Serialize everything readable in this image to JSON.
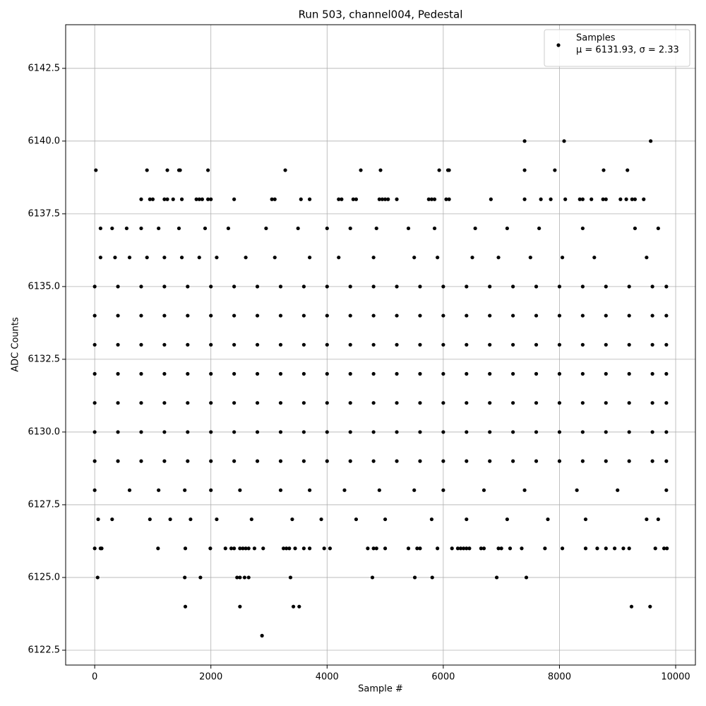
{
  "chart_data": {
    "type": "scatter",
    "title": "Run 503, channel004, Pedestal",
    "x_label": "Sample #",
    "y_label": "ADC Counts",
    "xlim": [
      -500,
      10340
    ],
    "ylim": [
      6121.99,
      6144.0
    ],
    "xticks": [
      0,
      2000,
      4000,
      6000,
      8000,
      10000
    ],
    "yticks": [
      6122.5,
      {
        "value": 6125,
        "label": "6125.0"
      },
      6127.5,
      {
        "value": 6130,
        "label": "6130.0"
      },
      6132.5,
      {
        "value": 6135,
        "label": "6135.0"
      },
      6137.5,
      {
        "value": 6140,
        "label": "6140.0"
      },
      6142.5
    ],
    "grid": true,
    "legend": "upper right",
    "annotation": "μ = 6131.93, σ = 2.33",
    "series": [
      {
        "name": "Samples",
        "color": "#000000",
        "x": [
          7400,
          8080,
          9570,
          20,
          900,
          1250,
          1450,
          1470,
          1950,
          3280,
          4580,
          4920,
          5930,
          6080,
          6100,
          7400,
          7920,
          8760,
          9170,
          800,
          950,
          1000,
          1200,
          1250,
          1350,
          1500,
          1750,
          1800,
          1850,
          1950,
          2000,
          2400,
          3050,
          3100,
          3550,
          3700,
          4200,
          4250,
          4450,
          4500,
          4900,
          4950,
          5000,
          5050,
          5200,
          5750,
          5800,
          5850,
          6050,
          6100,
          6820,
          7400,
          7680,
          7850,
          8100,
          8350,
          8400,
          8550,
          8750,
          8800,
          9050,
          9150,
          9250,
          9300,
          9450,
          100,
          300,
          550,
          800,
          1100,
          1450,
          1900,
          2300,
          2950,
          3500,
          4000,
          4400,
          4850,
          5400,
          5850,
          6550,
          7100,
          7650,
          8400,
          9300,
          9700,
          100,
          350,
          600,
          900,
          1200,
          1500,
          1800,
          2100,
          2600,
          3100,
          3700,
          4200,
          4800,
          5500,
          5900,
          6500,
          6950,
          7500,
          8050,
          8600,
          9500,
          0,
          400,
          800,
          1200,
          1600,
          2000,
          2400,
          2800,
          3200,
          3600,
          4000,
          4400,
          4800,
          5200,
          5600,
          6000,
          6400,
          6800,
          7200,
          7600,
          8000,
          8400,
          8800,
          9200,
          9600,
          9840,
          0,
          400,
          800,
          1200,
          1600,
          2000,
          2400,
          2800,
          3200,
          3600,
          4000,
          4400,
          4800,
          5200,
          5600,
          6000,
          6400,
          6800,
          7200,
          7600,
          8000,
          8400,
          8800,
          9200,
          9600,
          9840,
          0,
          400,
          800,
          1200,
          1600,
          2000,
          2400,
          2800,
          3200,
          3600,
          4000,
          4400,
          4800,
          5200,
          5600,
          6000,
          6400,
          6800,
          7200,
          7600,
          8000,
          8400,
          8800,
          9200,
          9600,
          9840,
          0,
          400,
          800,
          1200,
          1600,
          2000,
          2400,
          2800,
          3200,
          3600,
          4000,
          4400,
          4800,
          5200,
          5600,
          6000,
          6400,
          6800,
          7200,
          7600,
          8000,
          8400,
          8800,
          9200,
          9600,
          9840,
          0,
          400,
          800,
          1200,
          1600,
          2000,
          2400,
          2800,
          3200,
          3600,
          4000,
          4400,
          4800,
          5200,
          5600,
          6000,
          6400,
          6800,
          7200,
          7600,
          8000,
          8400,
          8800,
          9200,
          9600,
          9840,
          0,
          400,
          800,
          1200,
          1600,
          2000,
          2400,
          2800,
          3200,
          3600,
          4000,
          4400,
          4800,
          5200,
          5600,
          6000,
          6400,
          6800,
          7200,
          7600,
          8000,
          8400,
          8800,
          9200,
          9600,
          9840,
          0,
          400,
          800,
          1200,
          1600,
          2000,
          2400,
          2800,
          3200,
          3600,
          4000,
          4400,
          4800,
          5200,
          5600,
          6000,
          6400,
          6800,
          7200,
          7600,
          8000,
          8400,
          8800,
          9200,
          9600,
          9840,
          0,
          600,
          1100,
          1550,
          2000,
          2500,
          3200,
          3700,
          4300,
          4900,
          5500,
          6000,
          6700,
          7400,
          8300,
          9000,
          9840,
          60,
          300,
          950,
          1300,
          1650,
          2100,
          2700,
          3400,
          3900,
          4500,
          5000,
          5800,
          6400,
          7100,
          7800,
          8450,
          9500,
          9700,
          0,
          100,
          120,
          1090,
          1560,
          1990,
          2250,
          2350,
          2400,
          2500,
          2550,
          2600,
          2650,
          2750,
          2900,
          3250,
          3300,
          3350,
          3450,
          3600,
          3700,
          3950,
          4050,
          4700,
          4800,
          4850,
          5000,
          5400,
          5550,
          5600,
          5900,
          6150,
          6250,
          6300,
          6350,
          6400,
          6450,
          6650,
          6700,
          6950,
          7000,
          7150,
          7350,
          7750,
          8050,
          8450,
          8650,
          8800,
          8950,
          9100,
          9200,
          9650,
          9800,
          9850,
          50,
          1550,
          1820,
          2450,
          2500,
          2580,
          2650,
          3370,
          4780,
          5510,
          5810,
          6920,
          7430,
          1560,
          2500,
          3420,
          3520,
          9240,
          9560,
          2880
        ],
        "values": [
          6140,
          6140,
          6140,
          6139,
          6139,
          6139,
          6139,
          6139,
          6139,
          6139,
          6139,
          6139,
          6139,
          6139,
          6139,
          6139,
          6139,
          6139,
          6139,
          6138,
          6138,
          6138,
          6138,
          6138,
          6138,
          6138,
          6138,
          6138,
          6138,
          6138,
          6138,
          6138,
          6138,
          6138,
          6138,
          6138,
          6138,
          6138,
          6138,
          6138,
          6138,
          6138,
          6138,
          6138,
          6138,
          6138,
          6138,
          6138,
          6138,
          6138,
          6138,
          6138,
          6138,
          6138,
          6138,
          6138,
          6138,
          6138,
          6138,
          6138,
          6138,
          6138,
          6138,
          6138,
          6138,
          6137,
          6137,
          6137,
          6137,
          6137,
          6137,
          6137,
          6137,
          6137,
          6137,
          6137,
          6137,
          6137,
          6137,
          6137,
          6137,
          6137,
          6137,
          6137,
          6137,
          6137,
          6136,
          6136,
          6136,
          6136,
          6136,
          6136,
          6136,
          6136,
          6136,
          6136,
          6136,
          6136,
          6136,
          6136,
          6136,
          6136,
          6136,
          6136,
          6136,
          6136,
          6136,
          6135,
          6135,
          6135,
          6135,
          6135,
          6135,
          6135,
          6135,
          6135,
          6135,
          6135,
          6135,
          6135,
          6135,
          6135,
          6135,
          6135,
          6135,
          6135,
          6135,
          6135,
          6135,
          6135,
          6135,
          6135,
          6135,
          6134,
          6134,
          6134,
          6134,
          6134,
          6134,
          6134,
          6134,
          6134,
          6134,
          6134,
          6134,
          6134,
          6134,
          6134,
          6134,
          6134,
          6134,
          6134,
          6134,
          6134,
          6134,
          6134,
          6134,
          6134,
          6134,
          6133,
          6133,
          6133,
          6133,
          6133,
          6133,
          6133,
          6133,
          6133,
          6133,
          6133,
          6133,
          6133,
          6133,
          6133,
          6133,
          6133,
          6133,
          6133,
          6133,
          6133,
          6133,
          6133,
          6133,
          6133,
          6133,
          6132,
          6132,
          6132,
          6132,
          6132,
          6132,
          6132,
          6132,
          6132,
          6132,
          6132,
          6132,
          6132,
          6132,
          6132,
          6132,
          6132,
          6132,
          6132,
          6132,
          6132,
          6132,
          6132,
          6132,
          6132,
          6132,
          6131,
          6131,
          6131,
          6131,
          6131,
          6131,
          6131,
          6131,
          6131,
          6131,
          6131,
          6131,
          6131,
          6131,
          6131,
          6131,
          6131,
          6131,
          6131,
          6131,
          6131,
          6131,
          6131,
          6131,
          6131,
          6131,
          6130,
          6130,
          6130,
          6130,
          6130,
          6130,
          6130,
          6130,
          6130,
          6130,
          6130,
          6130,
          6130,
          6130,
          6130,
          6130,
          6130,
          6130,
          6130,
          6130,
          6130,
          6130,
          6130,
          6130,
          6130,
          6130,
          6129,
          6129,
          6129,
          6129,
          6129,
          6129,
          6129,
          6129,
          6129,
          6129,
          6129,
          6129,
          6129,
          6129,
          6129,
          6129,
          6129,
          6129,
          6129,
          6129,
          6129,
          6129,
          6129,
          6129,
          6129,
          6129,
          6128,
          6128,
          6128,
          6128,
          6128,
          6128,
          6128,
          6128,
          6128,
          6128,
          6128,
          6128,
          6128,
          6128,
          6128,
          6128,
          6128,
          6127,
          6127,
          6127,
          6127,
          6127,
          6127,
          6127,
          6127,
          6127,
          6127,
          6127,
          6127,
          6127,
          6127,
          6127,
          6127,
          6127,
          6127,
          6126,
          6126,
          6126,
          6126,
          6126,
          6126,
          6126,
          6126,
          6126,
          6126,
          6126,
          6126,
          6126,
          6126,
          6126,
          6126,
          6126,
          6126,
          6126,
          6126,
          6126,
          6126,
          6126,
          6126,
          6126,
          6126,
          6126,
          6126,
          6126,
          6126,
          6126,
          6126,
          6126,
          6126,
          6126,
          6126,
          6126,
          6126,
          6126,
          6126,
          6126,
          6126,
          6126,
          6126,
          6126,
          6126,
          6126,
          6126,
          6126,
          6126,
          6126,
          6126,
          6126,
          6126,
          6125,
          6125,
          6125,
          6125,
          6125,
          6125,
          6125,
          6125,
          6125,
          6125,
          6125,
          6125,
          6125,
          6124,
          6124,
          6124,
          6124,
          6124,
          6124,
          6123
        ]
      }
    ]
  }
}
